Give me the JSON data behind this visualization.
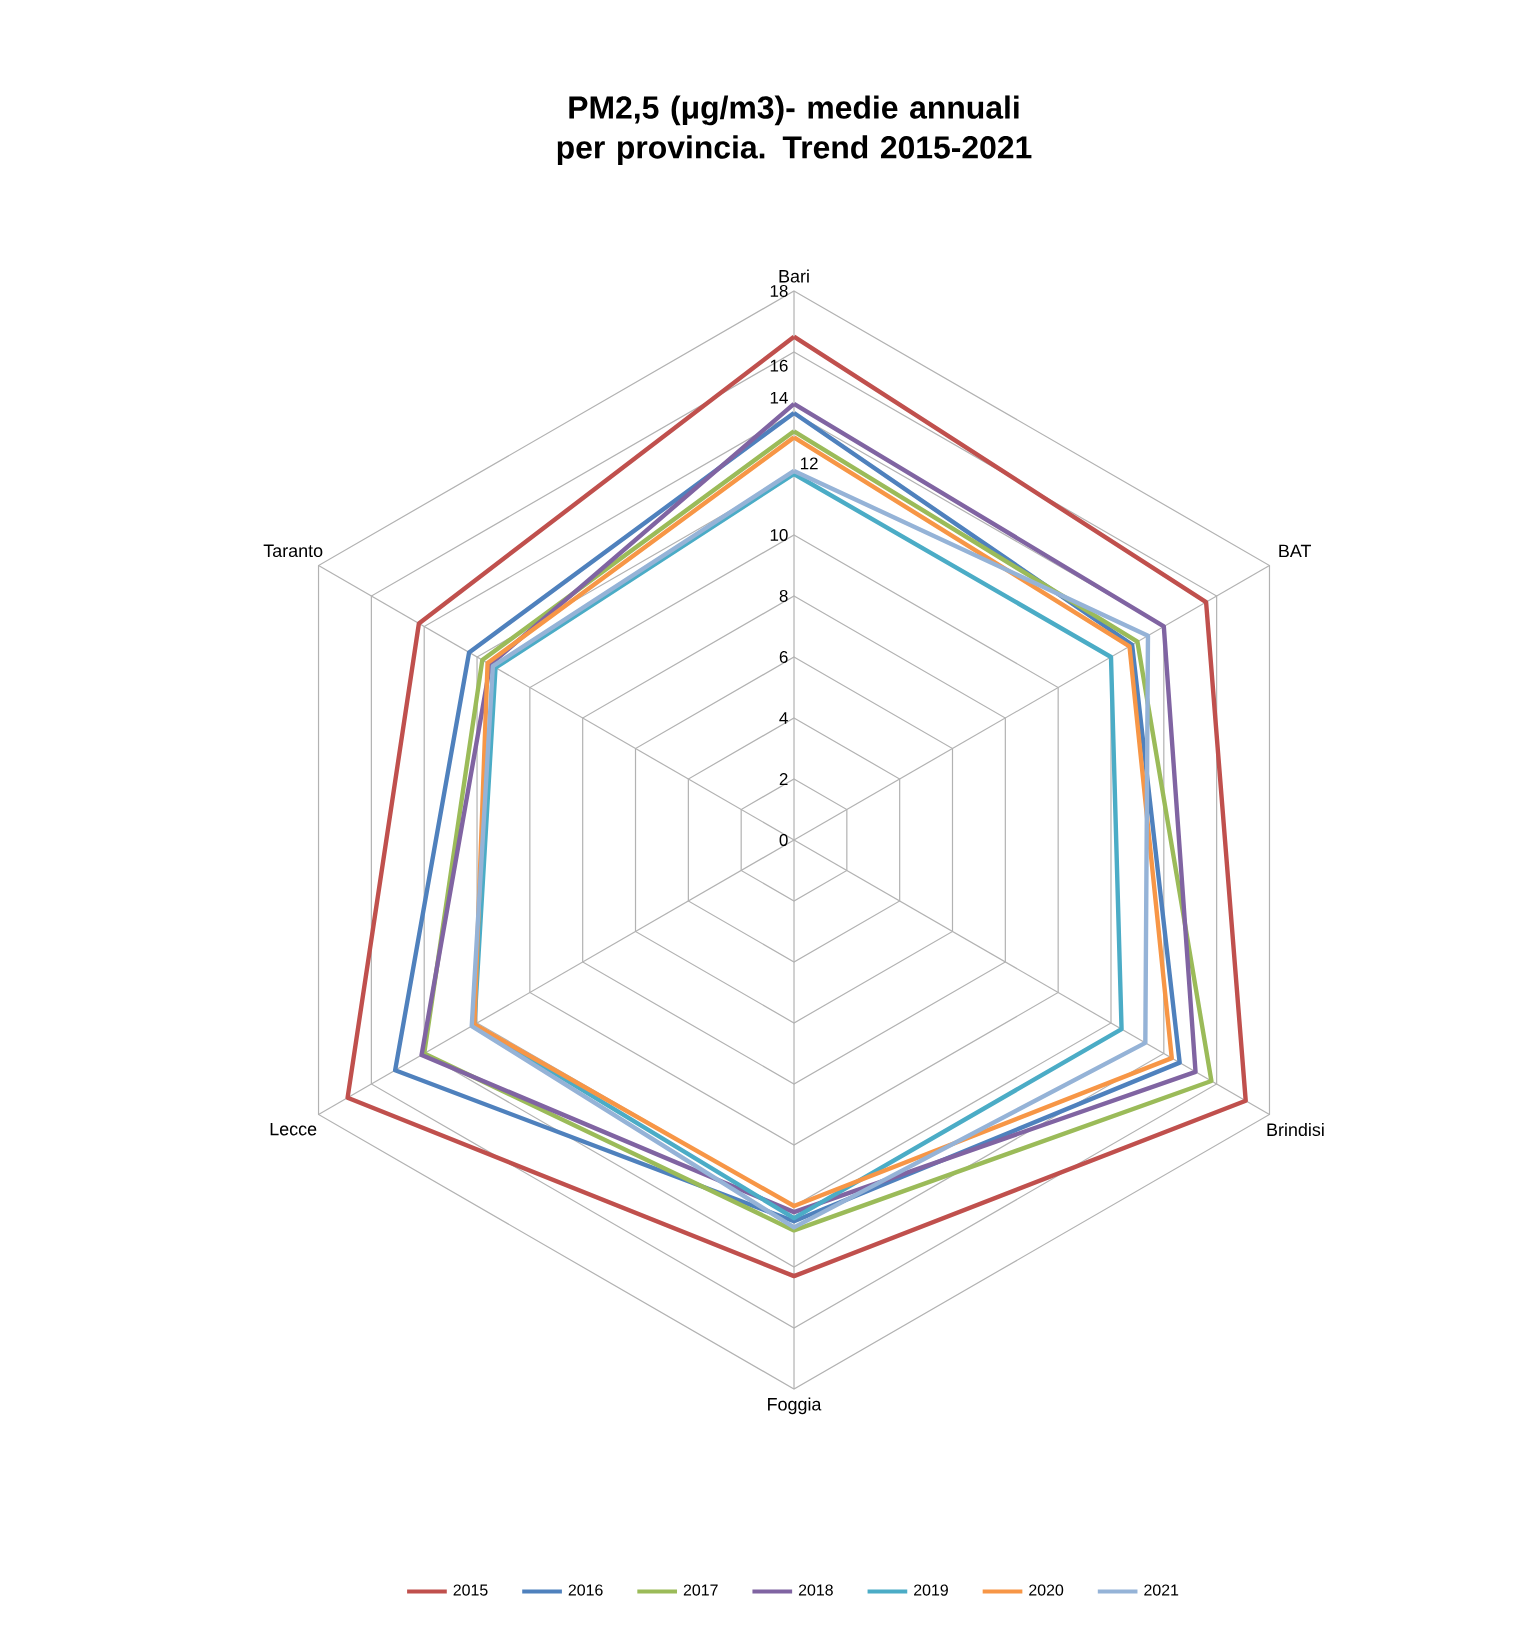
{
  "chart_data": {
    "type": "radar",
    "title": "PM2,5 (μg/m3)- medie annuali per provincia. Trend 2015-2021",
    "categories": [
      "Bari",
      "BAT",
      "Brindisi",
      "Foggia",
      "Lecce",
      "Taranto"
    ],
    "ylim": [
      0,
      18
    ],
    "yticks": [
      0,
      2,
      4,
      6,
      8,
      10,
      12,
      14,
      16,
      18
    ],
    "grid": true,
    "legend": "bottom",
    "series": [
      {
        "name": "2015",
        "color": "#c0504d",
        "values": [
          16.5,
          15.6,
          17.1,
          14.3,
          16.9,
          14.2
        ]
      },
      {
        "name": "2016",
        "color": "#4f81bd",
        "values": [
          14.0,
          12.8,
          14.6,
          12.5,
          15.1,
          12.3
        ]
      },
      {
        "name": "2017",
        "color": "#9bbb59",
        "values": [
          13.4,
          13.0,
          15.8,
          12.8,
          14.0,
          11.8
        ]
      },
      {
        "name": "2018",
        "color": "#8064a2",
        "values": [
          14.3,
          14.0,
          15.2,
          12.2,
          14.1,
          11.5
        ]
      },
      {
        "name": "2019",
        "color": "#4bacc6",
        "values": [
          12.0,
          12.0,
          12.4,
          12.4,
          12.1,
          11.3
        ]
      },
      {
        "name": "2020",
        "color": "#f79646",
        "values": [
          13.2,
          12.7,
          14.3,
          12.0,
          12.1,
          11.6
        ]
      },
      {
        "name": "2021",
        "color": "#95b3d7",
        "values": [
          12.1,
          13.4,
          13.3,
          12.7,
          12.2,
          11.4
        ]
      }
    ]
  }
}
